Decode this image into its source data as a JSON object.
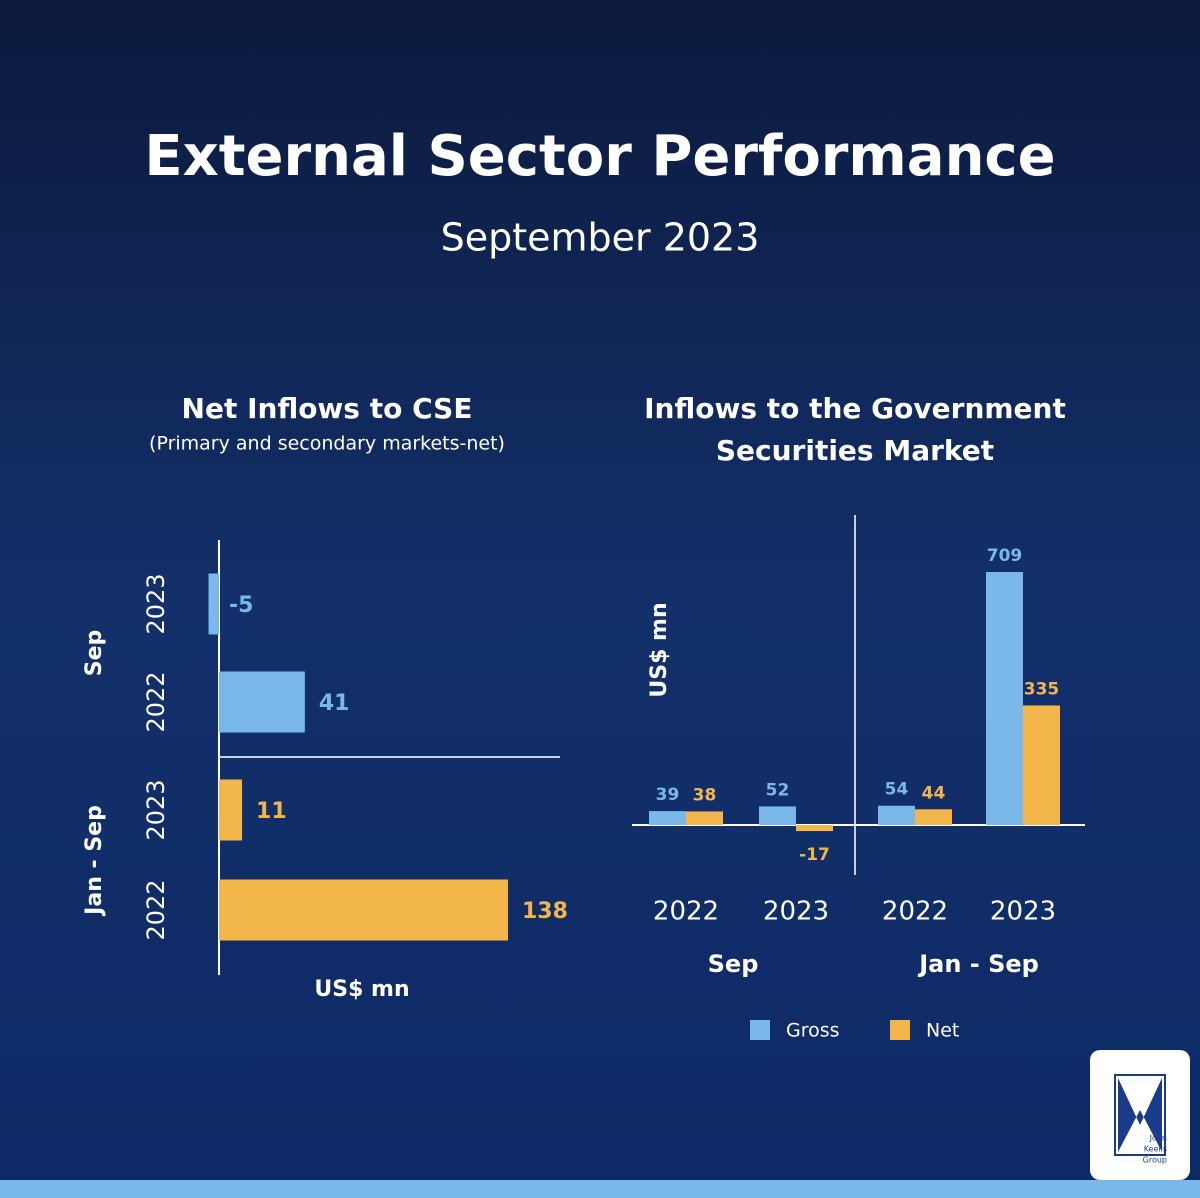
{
  "header": {
    "title": "External Sector Performance",
    "subtitle": "September 2023"
  },
  "chart_data": [
    {
      "type": "hbar",
      "title": "Net Inflows to CSE",
      "subtitle": "(Primary and secondary markets-net)",
      "groups": [
        "Sep",
        "Jan - Sep"
      ],
      "categories": [
        "2023",
        "2022",
        "2023",
        "2022"
      ],
      "values": [
        -5,
        41,
        11,
        138
      ],
      "colors": [
        "#79b8e8",
        "#79b8e8",
        "#f3b64a",
        "#f3b64a"
      ],
      "xlabel": "US$ mn"
    },
    {
      "type": "bar",
      "title": "Inflows to the Government Securities Market",
      "groups": [
        "Sep",
        "Jan - Sep"
      ],
      "categories": [
        "2022",
        "2023",
        "2022",
        "2023"
      ],
      "series": [
        {
          "name": "Gross",
          "color": "#79b8e8",
          "values": [
            39,
            52,
            54,
            709
          ]
        },
        {
          "name": "Net",
          "color": "#f3b64a",
          "values": [
            38,
            -17,
            44,
            335
          ]
        }
      ],
      "ylabel": "US$ mn"
    }
  ],
  "logo": {
    "lines": [
      "John",
      "Keells",
      "Group"
    ]
  }
}
